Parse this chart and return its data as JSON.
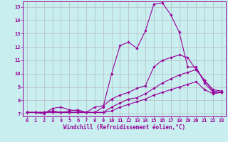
{
  "xlabel": "Windchill (Refroidissement éolien,°C)",
  "background_color": "#c8eef0",
  "line_color": "#990099",
  "grid_color": "#b0b0b0",
  "xlim": [
    -0.5,
    23.5
  ],
  "ylim": [
    6.8,
    15.4
  ],
  "xticks": [
    0,
    1,
    2,
    3,
    4,
    5,
    6,
    7,
    8,
    9,
    10,
    11,
    12,
    13,
    14,
    15,
    16,
    17,
    18,
    19,
    20,
    21,
    22,
    23
  ],
  "yticks": [
    7,
    8,
    9,
    10,
    11,
    12,
    13,
    14,
    15
  ],
  "curves": [
    [
      7.1,
      7.1,
      7.1,
      7.1,
      7.1,
      7.2,
      7.3,
      7.1,
      7.1,
      7.5,
      10.0,
      12.1,
      12.35,
      11.9,
      13.2,
      15.2,
      15.3,
      14.4,
      13.1,
      10.5,
      10.5,
      9.3,
      8.6,
      8.6
    ],
    [
      7.1,
      7.1,
      7.0,
      7.4,
      7.5,
      7.3,
      7.2,
      7.1,
      7.5,
      7.6,
      8.1,
      8.4,
      8.6,
      8.9,
      9.1,
      10.5,
      11.0,
      11.2,
      11.4,
      11.2,
      10.3,
      9.5,
      8.7,
      8.6
    ],
    [
      7.1,
      7.1,
      7.1,
      7.2,
      7.1,
      7.1,
      7.1,
      7.1,
      7.1,
      7.1,
      7.5,
      7.8,
      8.1,
      8.2,
      8.5,
      8.9,
      9.3,
      9.6,
      9.9,
      10.1,
      10.3,
      9.5,
      8.8,
      8.7
    ],
    [
      7.1,
      7.1,
      7.1,
      7.2,
      7.1,
      7.1,
      7.1,
      7.1,
      7.1,
      7.1,
      7.2,
      7.5,
      7.7,
      7.9,
      8.1,
      8.4,
      8.6,
      8.8,
      9.0,
      9.2,
      9.4,
      8.8,
      8.5,
      8.6
    ]
  ],
  "marker": "D",
  "marker_size": 1.8,
  "linewidth": 0.8,
  "xlabel_fontsize": 5.5,
  "tick_fontsize": 5.0
}
